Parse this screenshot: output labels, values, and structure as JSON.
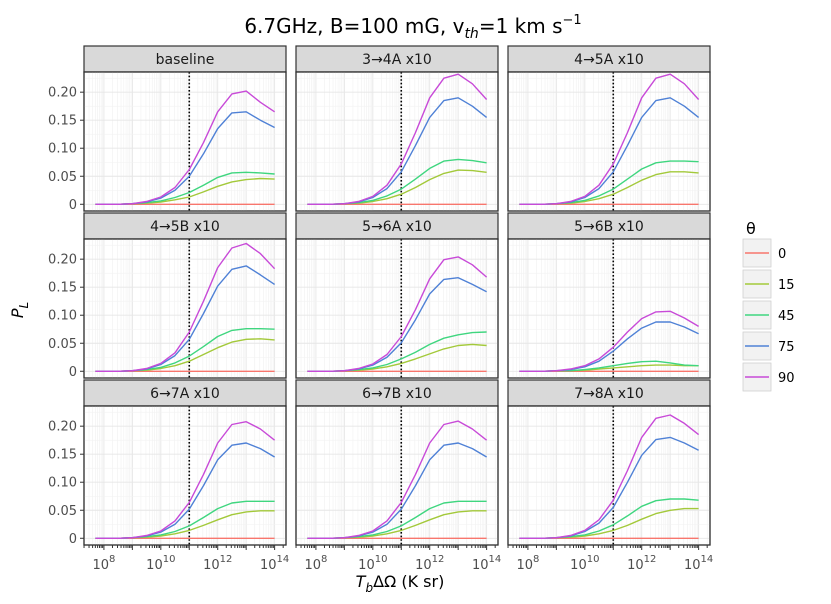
{
  "chart_data": {
    "type": "line",
    "title": "6.7GHz, B=100 mG, v",
    "title_sub": "th",
    "title_suffix": "=1 km s",
    "title_sup": "−1",
    "xlabel_main": "T",
    "xlabel_sub": "b",
    "xlabel_rest": "ΔΩ (K sr)",
    "ylabel_main": "P",
    "ylabel_sub": "L",
    "x_scale": "log10",
    "xlim_log10": [
      7.3,
      14.4
    ],
    "ylim": [
      -0.012,
      0.236
    ],
    "x_ticks_log10": [
      8,
      10,
      12,
      14
    ],
    "x_tick_base": "10",
    "x_tick_exponents": [
      "8",
      "10",
      "12",
      "14"
    ],
    "y_ticks": [
      0,
      0.05,
      0.1,
      0.15,
      0.2
    ],
    "y_tick_labels": [
      "0",
      "0.05",
      "0.10",
      "0.15",
      "0.20"
    ],
    "vline_log10": 11,
    "legend": {
      "title": "θ",
      "entries": [
        {
          "label": "0",
          "color": "#f8766d"
        },
        {
          "label": "15",
          "color": "#a3c93a"
        },
        {
          "label": "45",
          "color": "#3fd67f"
        },
        {
          "label": "75",
          "color": "#4f81d6"
        },
        {
          "label": "90",
          "color": "#c84ad8"
        }
      ]
    },
    "series_x_log10": [
      7.7,
      8.5,
      9.0,
      9.5,
      10.0,
      10.5,
      11.0,
      11.5,
      12.0,
      12.5,
      13.0,
      13.5,
      14.0
    ],
    "panels": [
      {
        "label": "baseline",
        "series": [
          {
            "theta": "0",
            "values": [
              0,
              0,
              0,
              0,
              0,
              0,
              0,
              0,
              0,
              0,
              0,
              0,
              0
            ]
          },
          {
            "theta": "15",
            "values": [
              0,
              0,
              0.001,
              0.002,
              0.004,
              0.008,
              0.013,
              0.022,
              0.032,
              0.04,
              0.044,
              0.046,
              0.045
            ]
          },
          {
            "theta": "45",
            "values": [
              0,
              0,
              0.001,
              0.003,
              0.006,
              0.012,
              0.021,
              0.034,
              0.048,
              0.056,
              0.057,
              0.056,
              0.054
            ]
          },
          {
            "theta": "75",
            "values": [
              0,
              0,
              0.001,
              0.004,
              0.011,
              0.025,
              0.05,
              0.09,
              0.135,
              0.163,
              0.165,
              0.15,
              0.137
            ]
          },
          {
            "theta": "90",
            "values": [
              0,
              0,
              0.001,
              0.005,
              0.013,
              0.03,
              0.062,
              0.11,
              0.165,
              0.197,
              0.202,
              0.182,
              0.165
            ]
          }
        ]
      },
      {
        "label": "3→4A x10",
        "series": [
          {
            "theta": "0",
            "values": [
              0,
              0,
              0,
              0,
              0,
              0,
              0,
              0,
              0,
              0,
              0,
              0,
              0
            ]
          },
          {
            "theta": "15",
            "values": [
              0,
              0,
              0.001,
              0.002,
              0.005,
              0.01,
              0.018,
              0.03,
              0.044,
              0.055,
              0.061,
              0.06,
              0.057
            ]
          },
          {
            "theta": "45",
            "values": [
              0,
              0,
              0.001,
              0.003,
              0.007,
              0.015,
              0.027,
              0.045,
              0.064,
              0.077,
              0.08,
              0.078,
              0.074
            ]
          },
          {
            "theta": "75",
            "values": [
              0,
              0,
              0.001,
              0.004,
              0.012,
              0.028,
              0.058,
              0.105,
              0.155,
              0.185,
              0.19,
              0.175,
              0.155
            ]
          },
          {
            "theta": "90",
            "values": [
              0,
              0,
              0.001,
              0.005,
              0.014,
              0.034,
              0.072,
              0.128,
              0.19,
              0.225,
              0.232,
              0.215,
              0.187
            ]
          }
        ]
      },
      {
        "label": "4→5A x10",
        "series": [
          {
            "theta": "0",
            "values": [
              0,
              0,
              0,
              0,
              0,
              0,
              0,
              0,
              0,
              0,
              0,
              0,
              0
            ]
          },
          {
            "theta": "15",
            "values": [
              0,
              0,
              0.001,
              0.002,
              0.005,
              0.01,
              0.018,
              0.03,
              0.043,
              0.053,
              0.058,
              0.058,
              0.056
            ]
          },
          {
            "theta": "45",
            "values": [
              0,
              0,
              0.001,
              0.003,
              0.007,
              0.015,
              0.027,
              0.045,
              0.063,
              0.074,
              0.077,
              0.077,
              0.076
            ]
          },
          {
            "theta": "75",
            "values": [
              0,
              0,
              0.001,
              0.004,
              0.012,
              0.028,
              0.058,
              0.105,
              0.155,
              0.185,
              0.19,
              0.175,
              0.155
            ]
          },
          {
            "theta": "90",
            "values": [
              0,
              0,
              0.001,
              0.005,
              0.014,
              0.034,
              0.072,
              0.128,
              0.19,
              0.225,
              0.232,
              0.215,
              0.187
            ]
          }
        ]
      },
      {
        "label": "4→5B x10",
        "series": [
          {
            "theta": "0",
            "values": [
              0,
              0,
              0,
              0,
              0,
              0,
              0,
              0,
              0,
              0,
              0,
              0,
              0
            ]
          },
          {
            "theta": "15",
            "values": [
              0,
              0,
              0.001,
              0.002,
              0.005,
              0.01,
              0.018,
              0.03,
              0.042,
              0.052,
              0.057,
              0.058,
              0.056
            ]
          },
          {
            "theta": "45",
            "values": [
              0,
              0,
              0.001,
              0.003,
              0.007,
              0.015,
              0.027,
              0.044,
              0.062,
              0.073,
              0.076,
              0.076,
              0.075
            ]
          },
          {
            "theta": "75",
            "values": [
              0,
              0,
              0.001,
              0.004,
              0.012,
              0.028,
              0.057,
              0.103,
              0.152,
              0.182,
              0.188,
              0.172,
              0.155
            ]
          },
          {
            "theta": "90",
            "values": [
              0,
              0,
              0.001,
              0.005,
              0.014,
              0.033,
              0.07,
              0.125,
              0.185,
              0.22,
              0.228,
              0.21,
              0.183
            ]
          }
        ]
      },
      {
        "label": "5→6A x10",
        "series": [
          {
            "theta": "0",
            "values": [
              0,
              0,
              0,
              0,
              0,
              0,
              0,
              0,
              0,
              0,
              0,
              0,
              0
            ]
          },
          {
            "theta": "15",
            "values": [
              0,
              0,
              0.001,
              0.002,
              0.004,
              0.008,
              0.014,
              0.022,
              0.031,
              0.04,
              0.046,
              0.048,
              0.046
            ]
          },
          {
            "theta": "45",
            "values": [
              0,
              0,
              0.001,
              0.003,
              0.006,
              0.012,
              0.022,
              0.034,
              0.048,
              0.059,
              0.065,
              0.069,
              0.07
            ]
          },
          {
            "theta": "75",
            "values": [
              0,
              0,
              0.001,
              0.004,
              0.011,
              0.025,
              0.051,
              0.092,
              0.138,
              0.164,
              0.167,
              0.155,
              0.142
            ]
          },
          {
            "theta": "90",
            "values": [
              0,
              0,
              0.001,
              0.005,
              0.013,
              0.03,
              0.062,
              0.11,
              0.165,
              0.199,
              0.204,
              0.19,
              0.168
            ]
          }
        ]
      },
      {
        "label": "5→6B x10",
        "series": [
          {
            "theta": "0",
            "values": [
              0,
              0,
              0,
              0,
              0,
              0,
              0,
              0,
              0,
              0,
              0,
              0,
              0
            ]
          },
          {
            "theta": "15",
            "values": [
              0,
              0,
              0.001,
              0.001,
              0.002,
              0.004,
              0.006,
              0.008,
              0.01,
              0.011,
              0.011,
              0.01,
              0.01
            ]
          },
          {
            "theta": "45",
            "values": [
              0,
              0,
              0.001,
              0.001,
              0.003,
              0.006,
              0.01,
              0.014,
              0.017,
              0.018,
              0.015,
              0.011,
              0.01
            ]
          },
          {
            "theta": "75",
            "values": [
              0,
              0,
              0.001,
              0.003,
              0.008,
              0.018,
              0.036,
              0.058,
              0.077,
              0.088,
              0.088,
              0.079,
              0.067
            ]
          },
          {
            "theta": "90",
            "values": [
              0,
              0,
              0.001,
              0.004,
              0.01,
              0.022,
              0.043,
              0.07,
              0.094,
              0.106,
              0.107,
              0.095,
              0.08
            ]
          }
        ]
      },
      {
        "label": "6→7A x10",
        "series": [
          {
            "theta": "0",
            "values": [
              0,
              0,
              0,
              0,
              0,
              0,
              0,
              0,
              0,
              0,
              0,
              0,
              0
            ]
          },
          {
            "theta": "15",
            "values": [
              0,
              0,
              0.001,
              0.002,
              0.004,
              0.008,
              0.014,
              0.023,
              0.033,
              0.042,
              0.047,
              0.049,
              0.049
            ]
          },
          {
            "theta": "45",
            "values": [
              0,
              0,
              0.001,
              0.003,
              0.006,
              0.012,
              0.022,
              0.037,
              0.053,
              0.063,
              0.066,
              0.066,
              0.066
            ]
          },
          {
            "theta": "75",
            "values": [
              0,
              0,
              0.001,
              0.004,
              0.011,
              0.025,
              0.052,
              0.094,
              0.14,
              0.166,
              0.17,
              0.16,
              0.145
            ]
          },
          {
            "theta": "90",
            "values": [
              0,
              0,
              0.001,
              0.005,
              0.013,
              0.031,
              0.064,
              0.114,
              0.17,
              0.203,
              0.208,
              0.195,
              0.175
            ]
          }
        ]
      },
      {
        "label": "6→7B x10",
        "series": [
          {
            "theta": "0",
            "values": [
              0,
              0,
              0,
              0,
              0,
              0,
              0,
              0,
              0,
              0,
              0,
              0,
              0
            ]
          },
          {
            "theta": "15",
            "values": [
              0,
              0,
              0.001,
              0.002,
              0.004,
              0.008,
              0.014,
              0.023,
              0.033,
              0.042,
              0.047,
              0.049,
              0.049
            ]
          },
          {
            "theta": "45",
            "values": [
              0,
              0,
              0.001,
              0.003,
              0.006,
              0.012,
              0.022,
              0.037,
              0.053,
              0.063,
              0.066,
              0.066,
              0.066
            ]
          },
          {
            "theta": "75",
            "values": [
              0,
              0,
              0.001,
              0.004,
              0.011,
              0.025,
              0.052,
              0.094,
              0.14,
              0.166,
              0.17,
              0.16,
              0.145
            ]
          },
          {
            "theta": "90",
            "values": [
              0,
              0,
              0.001,
              0.005,
              0.013,
              0.031,
              0.064,
              0.114,
              0.17,
              0.203,
              0.209,
              0.195,
              0.175
            ]
          }
        ]
      },
      {
        "label": "7→8A x10",
        "series": [
          {
            "theta": "0",
            "values": [
              0,
              0,
              0,
              0,
              0,
              0,
              0,
              0,
              0,
              0,
              0,
              0,
              0
            ]
          },
          {
            "theta": "15",
            "values": [
              0,
              0,
              0.001,
              0.002,
              0.004,
              0.008,
              0.014,
              0.023,
              0.034,
              0.044,
              0.05,
              0.053,
              0.053
            ]
          },
          {
            "theta": "45",
            "values": [
              0,
              0,
              0.001,
              0.003,
              0.006,
              0.013,
              0.024,
              0.04,
              0.057,
              0.067,
              0.07,
              0.07,
              0.068
            ]
          },
          {
            "theta": "75",
            "values": [
              0,
              0,
              0.001,
              0.004,
              0.012,
              0.027,
              0.055,
              0.1,
              0.148,
              0.176,
              0.18,
              0.17,
              0.157
            ]
          },
          {
            "theta": "90",
            "values": [
              0,
              0,
              0.001,
              0.005,
              0.014,
              0.033,
              0.068,
              0.121,
              0.18,
              0.214,
              0.22,
              0.205,
              0.185
            ]
          }
        ]
      }
    ]
  }
}
